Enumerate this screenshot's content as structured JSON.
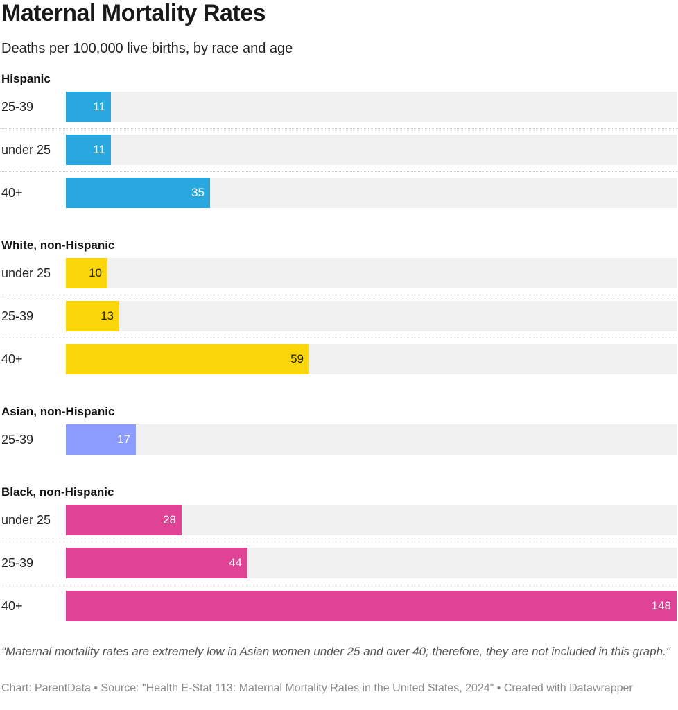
{
  "chart_data": {
    "type": "bar",
    "orientation": "horizontal",
    "title": "Maternal Mortality Rates",
    "subtitle": "Deaths per 100,000 live births, by race and age",
    "unit": "Deaths per 100,000 live births",
    "xlim": [
      0,
      148
    ],
    "groups": [
      {
        "name": "Hispanic",
        "color": "#29a8e0",
        "rows": [
          {
            "label": "25-39",
            "value": 11
          },
          {
            "label": "under 25",
            "value": 11
          },
          {
            "label": "40+",
            "value": 35
          }
        ]
      },
      {
        "name": "White, non-Hispanic",
        "color": "#fad60a",
        "rows": [
          {
            "label": "under 25",
            "value": 10
          },
          {
            "label": "25-39",
            "value": 13
          },
          {
            "label": "40+",
            "value": 59
          }
        ]
      },
      {
        "name": "Asian, non-Hispanic",
        "color": "#8c9bff",
        "rows": [
          {
            "label": "25-39",
            "value": 17
          }
        ]
      },
      {
        "name": "Black, non-Hispanic",
        "color": "#e04296",
        "rows": [
          {
            "label": "under 25",
            "value": 28
          },
          {
            "label": "25-39",
            "value": 44
          },
          {
            "label": "40+",
            "value": 148
          }
        ]
      }
    ],
    "note": "\"Maternal mortality rates are extremely low in Asian women under 25 and over 40; therefore, they are not included in this graph.\"",
    "source": "Chart: ParentData • Source: \"Health E-Stat 113: Maternal Mortality Rates in the United States, 2024\" • Created with Datawrapper"
  }
}
